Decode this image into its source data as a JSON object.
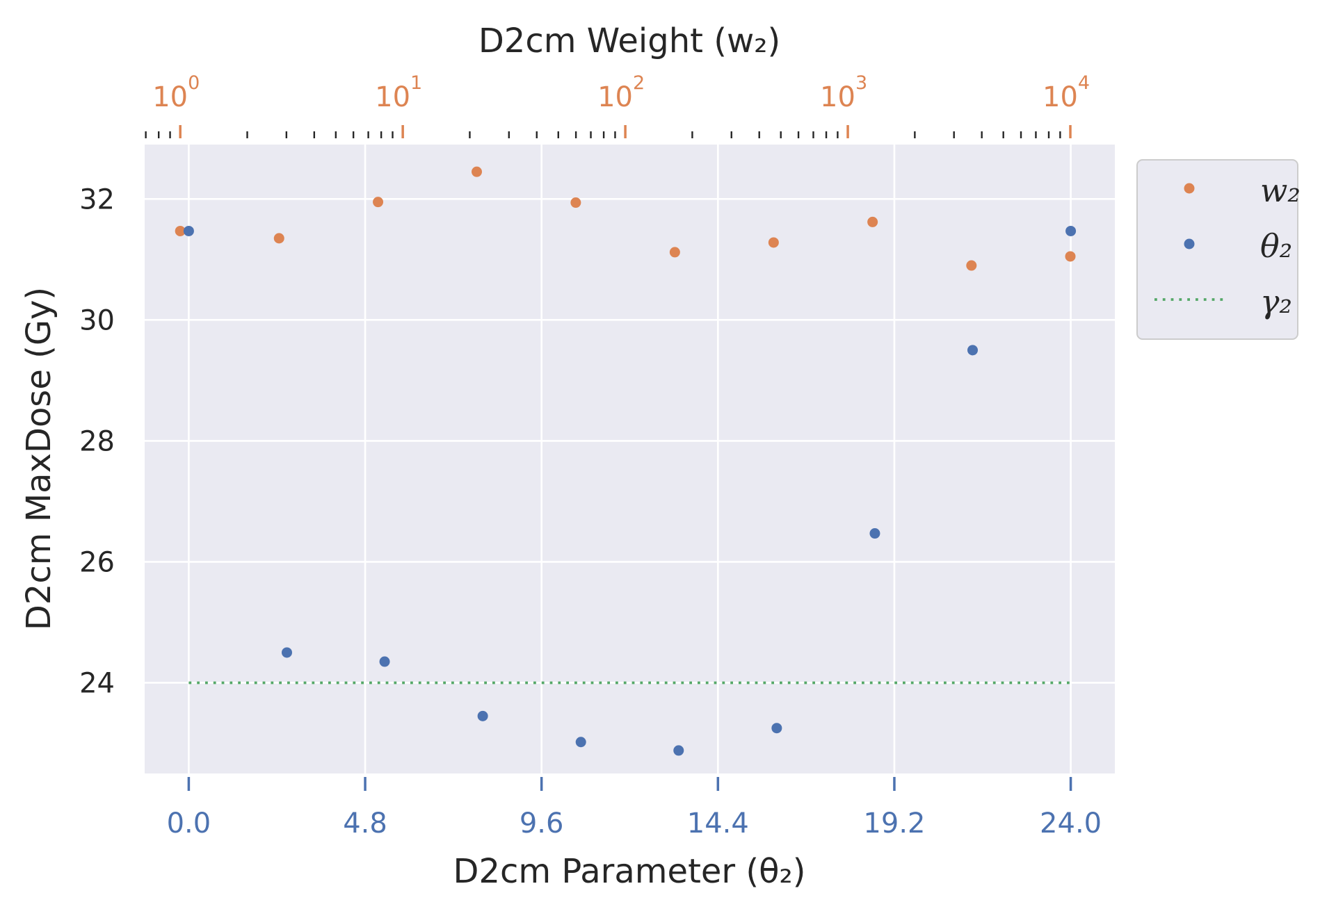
{
  "colors": {
    "plot_background": "#eaeaf2",
    "grid": "#ffffff",
    "w2": "#dd8452",
    "theta2": "#4c72b0",
    "gamma2": "#55a868",
    "text": "#262626"
  },
  "chart_data": {
    "type": "scatter",
    "title": "",
    "xlabel": "D2cm Parameter (θ₂)",
    "ylabel": "D2cm MaxDose (Gy)",
    "top_xlabel": "D2cm Weight (w₂)",
    "xlim": [
      -1.2,
      25.2
    ],
    "ylim": [
      22.5,
      32.9
    ],
    "top_xlim_log10": [
      -0.16,
      4.2
    ],
    "x_ticks": [
      0.0,
      4.8,
      9.6,
      14.4,
      19.2,
      24.0
    ],
    "x_tick_labels": [
      "0.0",
      "4.8",
      "9.6",
      "14.4",
      "19.2",
      "24.0"
    ],
    "y_ticks": [
      24,
      26,
      28,
      30,
      32
    ],
    "y_tick_labels": [
      "24",
      "26",
      "28",
      "30",
      "32"
    ],
    "top_ticks": [
      1,
      10,
      100,
      1000,
      10000
    ],
    "top_tick_labels": [
      {
        "base": "10",
        "exp": "0"
      },
      {
        "base": "10",
        "exp": "1"
      },
      {
        "base": "10",
        "exp": "2"
      },
      {
        "base": "10",
        "exp": "3"
      },
      {
        "base": "10",
        "exp": "4"
      }
    ],
    "grid": true,
    "legend_position": "outside-right-top",
    "series": [
      {
        "name": "w₂",
        "key": "w2",
        "kind": "scatter",
        "axis": "top-log",
        "x": [
          1,
          2.78,
          7.74,
          21.5,
          59.9,
          167,
          464,
          1292,
          3594,
          10000
        ],
        "y": [
          31.47,
          31.35,
          31.95,
          32.45,
          31.94,
          31.12,
          31.28,
          31.62,
          30.9,
          31.05
        ]
      },
      {
        "name": "θ₂",
        "key": "theta2",
        "kind": "scatter",
        "axis": "bottom",
        "x": [
          0.0,
          2.67,
          5.33,
          8.0,
          10.67,
          13.33,
          16.0,
          18.67,
          21.33,
          24.0
        ],
        "y": [
          31.47,
          24.5,
          24.35,
          23.45,
          23.02,
          22.88,
          23.25,
          26.47,
          29.5,
          31.47
        ]
      },
      {
        "name": "γ₂",
        "key": "gamma2",
        "kind": "hline",
        "axis": "bottom",
        "x": [
          0.0,
          24.0
        ],
        "y": [
          24.0,
          24.0
        ]
      }
    ],
    "legend": [
      {
        "label": "w₂",
        "key": "w2",
        "marker": "dot"
      },
      {
        "label": "θ₂",
        "key": "theta2",
        "marker": "dot"
      },
      {
        "label": "γ₂",
        "key": "gamma2",
        "marker": "dotted-line"
      }
    ]
  }
}
